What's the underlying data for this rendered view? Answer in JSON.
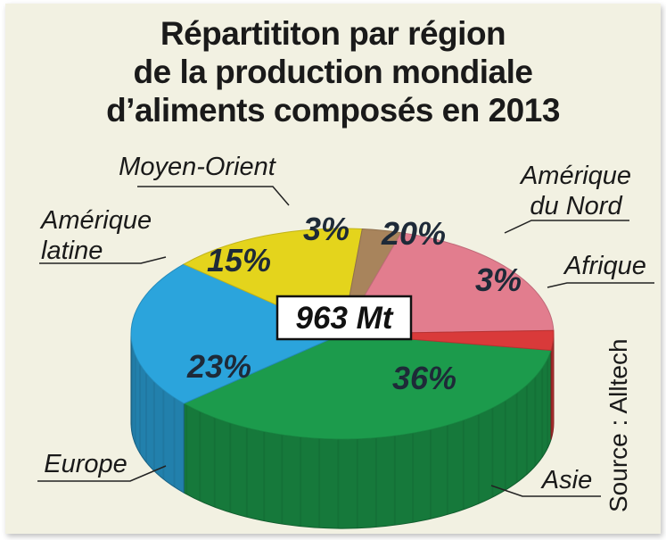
{
  "title_lines": [
    "Répartititon par région",
    "de la production mondiale",
    "d’aliments composés en 2013"
  ],
  "center_label": "963 Mt",
  "source": "Source : Alltech",
  "colors": {
    "Asie": "#1c9b4c",
    "Afrique": "#d93a3a",
    "Amérique du Nord": "#e27d8e",
    "Moyen-Orient": "#a8845c",
    "Amérique latine": "#e4d41c",
    "Europe": "#2ba4dc"
  },
  "chart_data": {
    "type": "pie",
    "title": "Répartititon par région de la production mondiale d’aliments composés en 2013",
    "total": "963 Mt",
    "slices": [
      {
        "label": "Asie",
        "value": 36,
        "pct_label": "36%"
      },
      {
        "label": "Europe",
        "value": 23,
        "pct_label": "23%"
      },
      {
        "label": "Amérique latine",
        "value": 15,
        "pct_label": "15%"
      },
      {
        "label": "Moyen-Orient",
        "value": 3,
        "pct_label": "3%"
      },
      {
        "label": "Amérique du Nord",
        "value": 20,
        "pct_label": "20%"
      },
      {
        "label": "Afrique",
        "value": 3,
        "pct_label": "3%"
      }
    ]
  }
}
